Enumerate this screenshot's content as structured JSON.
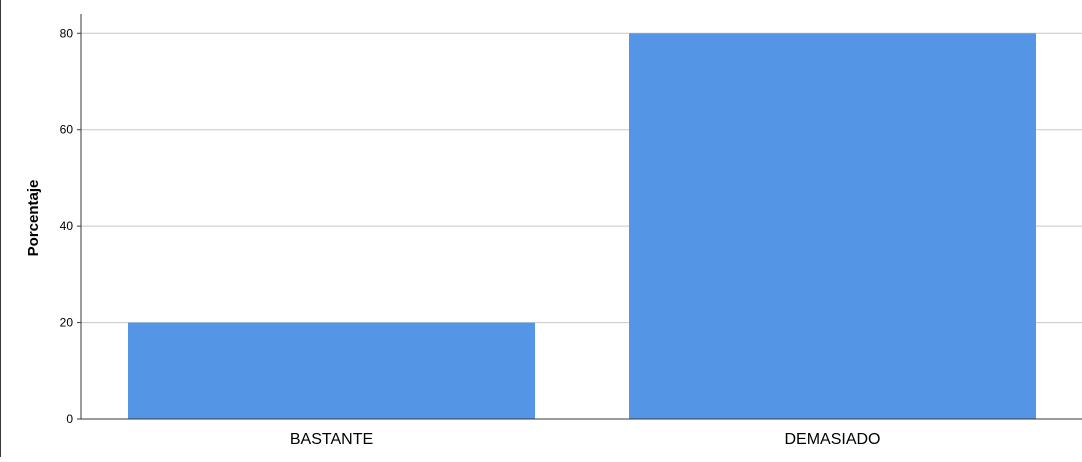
{
  "chart_data": {
    "type": "bar",
    "categories": [
      "BASTANTE",
      "DEMASIADO"
    ],
    "values": [
      20,
      80
    ],
    "title": "",
    "xlabel": "",
    "ylabel": "Porcentaje",
    "ylim": [
      0,
      84
    ],
    "yticks": [
      0,
      20,
      40,
      60,
      80
    ],
    "grid": true,
    "legend": "none",
    "colors": {
      "bar": "#5595e5",
      "grid": "#c8c8c8",
      "axis": "#3a3a3a",
      "text": "#000000"
    }
  }
}
